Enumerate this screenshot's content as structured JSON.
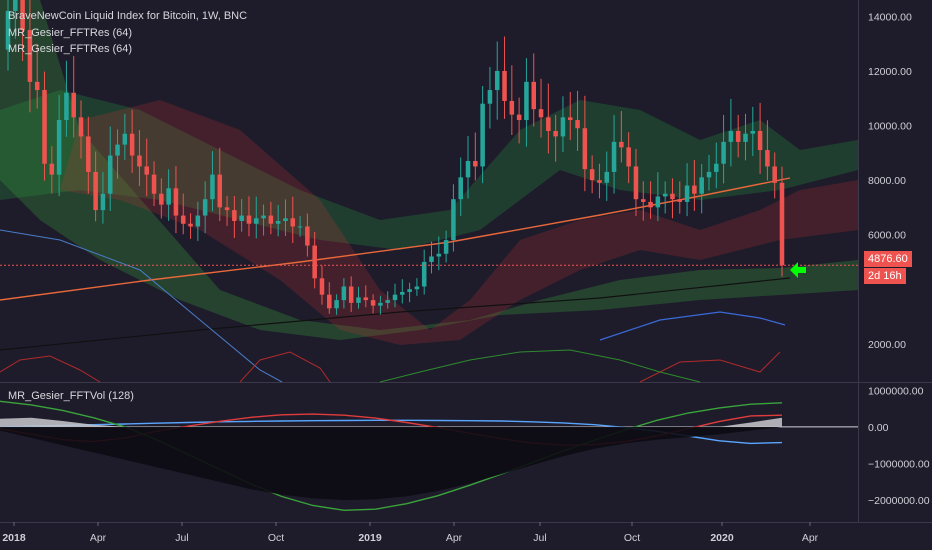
{
  "legend": {
    "main_title": "BraveNewCoin Liquid Index for Bitcoin, 1W, BNC",
    "ind1": "MR_Gesier_FFTRes (64)",
    "ind2": "MR_Gesier_FFTRes (64)",
    "sub": "MR_Gesier_FFTVol (128)"
  },
  "price_tag": "4876.60",
  "countdown_tag": "2d 16h",
  "colors": {
    "background": "#1e1c2b",
    "up": "#26a69a",
    "down": "#ef5350",
    "arrow": "#00ff00",
    "price_tag": "#ef5350"
  },
  "chart_data": [
    {
      "type": "candlestick",
      "title": "BraveNewCoin Liquid Index for Bitcoin, 1W, BNC",
      "ylim": [
        600,
        14600
      ],
      "y_ticks": [
        "14000.00",
        "12000.00",
        "10000.00",
        "8000.00",
        "6000.00",
        "2000.00"
      ],
      "x_ticks": [
        "2018",
        "Apr",
        "Jul",
        "Oct",
        "2019",
        "Apr",
        "Jul",
        "Oct",
        "2020",
        "Apr"
      ],
      "last_price": 4876.6,
      "close": [
        14200,
        16200,
        13500,
        11600,
        11300,
        8600,
        8200,
        10200,
        11200,
        10300,
        9600,
        8300,
        6900,
        7500,
        8900,
        9300,
        9700,
        8900,
        8500,
        8200,
        7500,
        7100,
        7700,
        6700,
        6400,
        6300,
        6700,
        7300,
        8200,
        7000,
        6900,
        6500,
        6700,
        6400,
        6600,
        6700,
        6400,
        6500,
        6600,
        6300,
        6300,
        5600,
        4400,
        3800,
        3300,
        3600,
        4100,
        3500,
        3700,
        3600,
        3400,
        3500,
        3600,
        3800,
        3900,
        4000,
        4100,
        5000,
        5200,
        5300,
        5800,
        7300,
        8100,
        8700,
        8500,
        10800,
        11300,
        12000,
        10900,
        10400,
        10200,
        11600,
        10600,
        10300,
        9800,
        9600,
        10300,
        10200,
        9900,
        8400,
        8000,
        7900,
        8300,
        9400,
        9200,
        8500,
        7300,
        7200,
        7000,
        7400,
        7500,
        7300,
        7200,
        7800,
        7500,
        8100,
        8300,
        8600,
        9400,
        9800,
        9400,
        9700,
        9800,
        9100,
        8500,
        7900,
        4877
      ]
    },
    {
      "type": "line",
      "title": "MR_Gesier_FFTVol (128)",
      "ylim": [
        -2600000,
        1200000
      ],
      "y_ticks": [
        "1000000.00",
        "0.00",
        "−1000000.00",
        "−2000000.00"
      ],
      "series": [
        {
          "color": "#5aa6ff",
          "values": [
            0,
            20000,
            40000,
            60000,
            80000,
            100000,
            120000,
            140000,
            150000,
            160000,
            170000,
            175000,
            180000,
            180000,
            175000,
            170000,
            160000,
            140000,
            110000,
            60000,
            -20000,
            -120000,
            -250000,
            -380000,
            -450000,
            -430000
          ]
        },
        {
          "color": "#e03c3c",
          "values": [
            -50000,
            -200000,
            -350000,
            -400000,
            -300000,
            -120000,
            20000,
            150000,
            260000,
            330000,
            350000,
            320000,
            240000,
            120000,
            -20000,
            -170000,
            -320000,
            -440000,
            -500000,
            -480000,
            -400000,
            -250000,
            -50000,
            150000,
            300000,
            320000
          ]
        },
        {
          "color": "#3aa33a",
          "values": [
            700000,
            600000,
            450000,
            250000,
            0,
            -350000,
            -750000,
            -1150000,
            -1550000,
            -1900000,
            -2150000,
            -2280000,
            -2250000,
            -2100000,
            -1880000,
            -1600000,
            -1300000,
            -980000,
            -660000,
            -360000,
            -80000,
            180000,
            380000,
            520000,
            620000,
            660000
          ]
        },
        {
          "color": "#0c0b12",
          "fill": true,
          "values": [
            -100000,
            -300000,
            -500000,
            -700000,
            -900000,
            -1100000,
            -1300000,
            -1500000,
            -1700000,
            -1850000,
            -1950000,
            -2000000,
            -1980000,
            -1900000,
            -1750000,
            -1550000,
            -1300000,
            -1050000,
            -800000,
            -600000,
            -450000,
            -350000,
            -280000,
            -200000,
            -100000,
            0
          ]
        },
        {
          "color": "#c8c8cc",
          "fill": true,
          "values": [
            220000,
            250000,
            160000,
            60000,
            0,
            0,
            0,
            0,
            0,
            0,
            0,
            0,
            0,
            0,
            0,
            0,
            0,
            0,
            0,
            0,
            0,
            0,
            0,
            0,
            120000,
            250000
          ]
        }
      ]
    }
  ]
}
